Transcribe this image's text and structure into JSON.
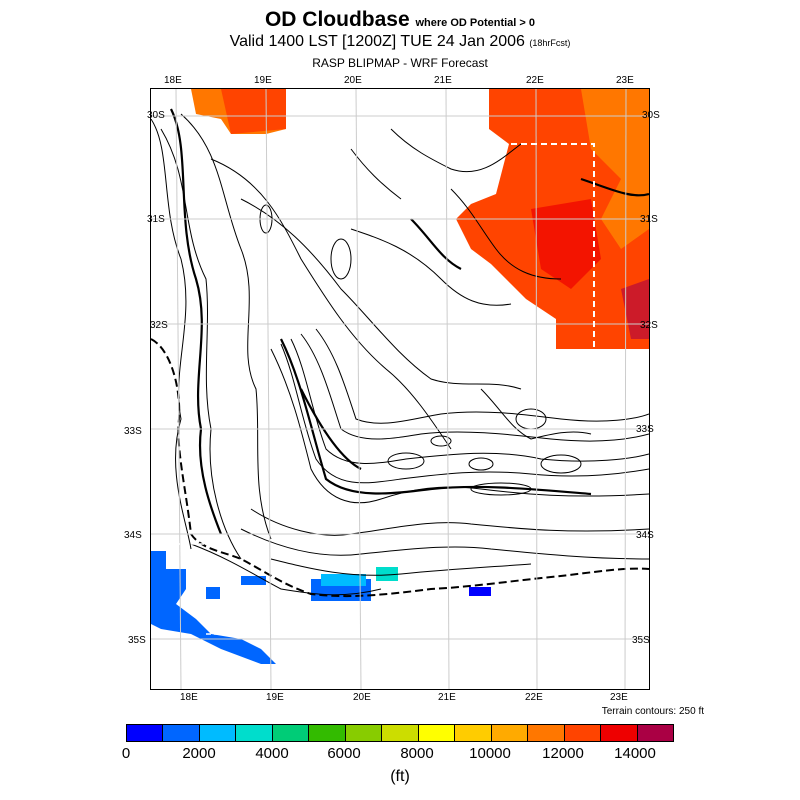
{
  "header": {
    "title": "OD Cloudbase",
    "title_suffix": "where OD Potential > 0",
    "valid": "Valid 1400 LST [1200Z] TUE 24 Jan 2006",
    "valid_suffix": "(18hrFcst)",
    "model": "RASP BLIPMAP - WRF Forecast"
  },
  "axes": {
    "top_lon": [
      "18E",
      "19E",
      "20E",
      "21E",
      "22E",
      "23E"
    ],
    "bottom_lon": [
      "18E",
      "19E",
      "20E",
      "21E",
      "22E",
      "23E"
    ],
    "left_lat": [
      "30S",
      "31S",
      "32S",
      "33S",
      "34S",
      "35S"
    ],
    "right_lat": [
      "30S",
      "31S",
      "32S",
      "33S",
      "34S",
      "35S"
    ]
  },
  "terrain_note": "Terrain contours: 250 ft",
  "colorbar": {
    "colors": [
      "#0000ff",
      "#0066ff",
      "#00bbff",
      "#00ddcc",
      "#00cc77",
      "#33bb00",
      "#88cc00",
      "#ccdd00",
      "#ffff00",
      "#ffcc00",
      "#ffaa00",
      "#ff7700",
      "#ff4400",
      "#ee0000",
      "#aa0044"
    ],
    "tick_labels": [
      "0",
      "2000",
      "4000",
      "6000",
      "8000",
      "10000",
      "12000",
      "14000"
    ],
    "unit": "(ft)"
  }
}
